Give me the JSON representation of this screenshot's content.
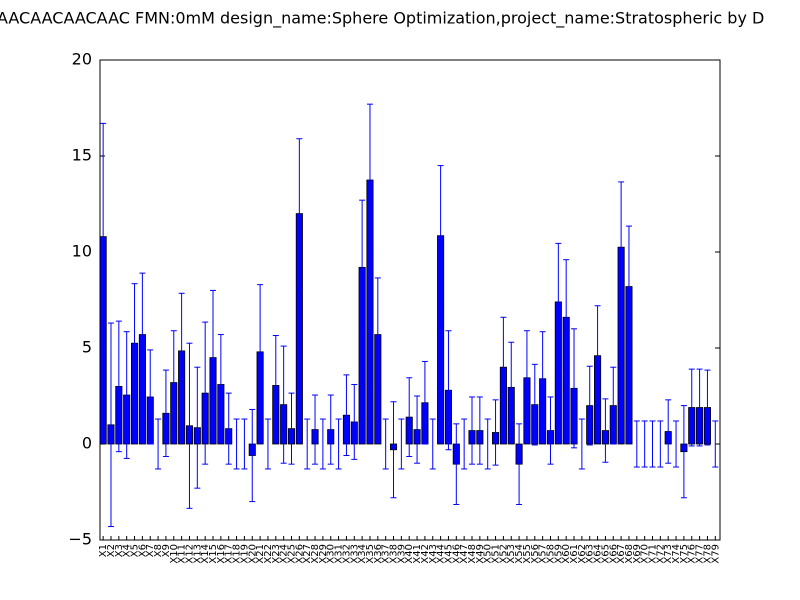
{
  "chart_data": {
    "type": "bar",
    "title": "AACAACAACAAC  FMN:0mM  design_name:Sphere Optimization,project_name:Stratospheric by D",
    "categories": [
      "X1",
      "X2",
      "X3",
      "X4",
      "X5",
      "X6",
      "X7",
      "X8",
      "X9",
      "X10",
      "X11",
      "X12",
      "X13",
      "X14",
      "X15",
      "X16",
      "X17",
      "X18",
      "X19",
      "X20",
      "X21",
      "X22",
      "X23",
      "X24",
      "X25",
      "X26",
      "X27",
      "X28",
      "X29",
      "X30",
      "X31",
      "X32",
      "X33",
      "X34",
      "X35",
      "X36",
      "X37",
      "X38",
      "X39",
      "X40",
      "X41",
      "X42",
      "X43",
      "X44",
      "X45",
      "X46",
      "X47",
      "X48",
      "X49",
      "X50",
      "X51",
      "X52",
      "X53",
      "X54",
      "X55",
      "X56",
      "X57",
      "X58",
      "X59",
      "X60",
      "X61",
      "X62",
      "X63",
      "X64",
      "X65",
      "X66",
      "X67",
      "X68",
      "X69",
      "X70",
      "X71",
      "X72",
      "X73",
      "X74",
      "X75",
      "X76",
      "X77",
      "X78",
      "X79"
    ],
    "values": [
      10.8,
      1.0,
      3.0,
      2.55,
      5.25,
      5.7,
      2.45,
      0,
      1.6,
      3.2,
      4.85,
      0.95,
      0.85,
      2.65,
      4.5,
      3.1,
      0.8,
      0,
      0,
      -0.6,
      4.8,
      0,
      3.05,
      2.05,
      0.8,
      12.0,
      0,
      0.75,
      0,
      0.75,
      0,
      1.5,
      1.15,
      9.2,
      13.75,
      5.7,
      0,
      -0.3,
      0,
      1.4,
      0.75,
      2.15,
      0,
      10.85,
      2.8,
      -1.05,
      0,
      0.7,
      0.7,
      0,
      0.6,
      4.0,
      2.95,
      -1.05,
      3.45,
      2.05,
      3.4,
      0.7,
      7.4,
      6.6,
      2.9,
      0,
      2.0,
      4.6,
      0.7,
      2.0,
      10.25,
      8.2,
      0,
      0,
      0,
      0,
      0.65,
      0,
      -0.4,
      1.9,
      1.9,
      1.9,
      0
    ],
    "errors": [
      5.9,
      5.3,
      3.4,
      3.3,
      3.1,
      3.2,
      2.45,
      1.3,
      2.25,
      2.7,
      3.0,
      4.3,
      3.15,
      3.7,
      3.5,
      2.6,
      1.85,
      1.3,
      1.3,
      2.4,
      3.5,
      1.3,
      2.6,
      3.05,
      1.85,
      3.9,
      1.3,
      1.8,
      1.3,
      1.8,
      1.3,
      2.1,
      1.95,
      3.5,
      3.95,
      2.95,
      1.3,
      2.5,
      1.3,
      2.05,
      1.75,
      2.15,
      1.3,
      3.65,
      3.1,
      2.1,
      1.3,
      1.75,
      1.75,
      1.3,
      1.7,
      2.6,
      2.35,
      2.1,
      2.45,
      2.1,
      2.45,
      1.75,
      3.05,
      3.0,
      3.1,
      1.3,
      2.05,
      2.6,
      1.65,
      2.0,
      3.4,
      3.15,
      1.2,
      1.2,
      1.2,
      1.2,
      1.65,
      1.2,
      2.4,
      2.0,
      2.0,
      1.95,
      1.2
    ],
    "color": "#0000ff",
    "error_color": "#0000ff",
    "ylim": [
      -5,
      20
    ],
    "yticks": [
      {
        "value": -5,
        "label": "−5"
      },
      0,
      5,
      10,
      15,
      20
    ]
  }
}
